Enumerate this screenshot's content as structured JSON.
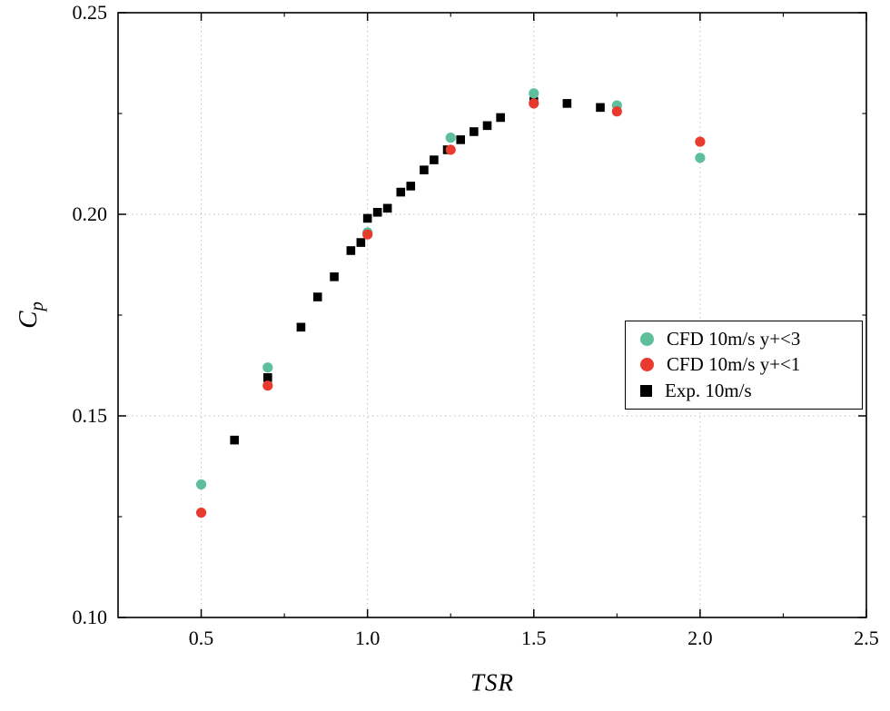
{
  "chart_data": {
    "type": "scatter",
    "title": "",
    "xlabel": "TSR",
    "ylabel": "Cp",
    "xlim": [
      0.25,
      2.5
    ],
    "ylim": [
      0.1,
      0.25
    ],
    "x_ticks": [
      0.5,
      1.0,
      1.5,
      2.0,
      2.5
    ],
    "x_tick_labels": [
      "0.5",
      "1.0",
      "1.5",
      "2.0",
      "2.5"
    ],
    "x_minor_ticks": [
      0.75,
      1.25,
      1.75,
      2.25
    ],
    "y_ticks": [
      0.1,
      0.15,
      0.2,
      0.25
    ],
    "y_tick_labels": [
      "0.10",
      "0.15",
      "0.20",
      "0.25"
    ],
    "y_minor_ticks": [
      0.125,
      0.175,
      0.225
    ],
    "grid": "dotted",
    "legend_position": "right-middle",
    "series": [
      {
        "name": "CFD 10m/s y+<3",
        "marker": "circle",
        "color": "#5dbf9b",
        "points": [
          [
            0.5,
            0.133
          ],
          [
            0.7,
            0.162
          ],
          [
            1.0,
            0.1955
          ],
          [
            1.25,
            0.219
          ],
          [
            1.5,
            0.23
          ],
          [
            1.75,
            0.227
          ],
          [
            2.0,
            0.214
          ]
        ]
      },
      {
        "name": "CFD 10m/s y+<1",
        "marker": "circle",
        "color": "#e93a2e",
        "points": [
          [
            0.5,
            0.126
          ],
          [
            0.7,
            0.1575
          ],
          [
            1.0,
            0.195
          ],
          [
            1.25,
            0.216
          ],
          [
            1.5,
            0.2275
          ],
          [
            1.75,
            0.2255
          ],
          [
            2.0,
            0.218
          ]
        ]
      },
      {
        "name": "Exp. 10m/s",
        "marker": "square",
        "color": "#000000",
        "points": [
          [
            0.6,
            0.144
          ],
          [
            0.7,
            0.1595
          ],
          [
            0.8,
            0.172
          ],
          [
            0.85,
            0.1795
          ],
          [
            0.9,
            0.1845
          ],
          [
            0.95,
            0.191
          ],
          [
            0.98,
            0.193
          ],
          [
            1.0,
            0.199
          ],
          [
            1.03,
            0.2005
          ],
          [
            1.06,
            0.2015
          ],
          [
            1.1,
            0.2055
          ],
          [
            1.13,
            0.207
          ],
          [
            1.17,
            0.211
          ],
          [
            1.2,
            0.2135
          ],
          [
            1.24,
            0.216
          ],
          [
            1.28,
            0.2185
          ],
          [
            1.32,
            0.2205
          ],
          [
            1.36,
            0.222
          ],
          [
            1.4,
            0.224
          ],
          [
            1.5,
            0.228
          ],
          [
            1.6,
            0.2275
          ],
          [
            1.7,
            0.2265
          ]
        ]
      }
    ]
  },
  "axis": {
    "x_label": "TSR",
    "y_label_main": "C",
    "y_label_sub": "p"
  },
  "legend": {
    "items": [
      {
        "label": "CFD 10m/s y+<3",
        "marker": "circle",
        "color": "#5dbf9b"
      },
      {
        "label": "CFD 10m/s y+<1",
        "marker": "circle",
        "color": "#e93a2e"
      },
      {
        "label": "Exp. 10m/s",
        "marker": "square",
        "color": "#000000"
      }
    ]
  }
}
